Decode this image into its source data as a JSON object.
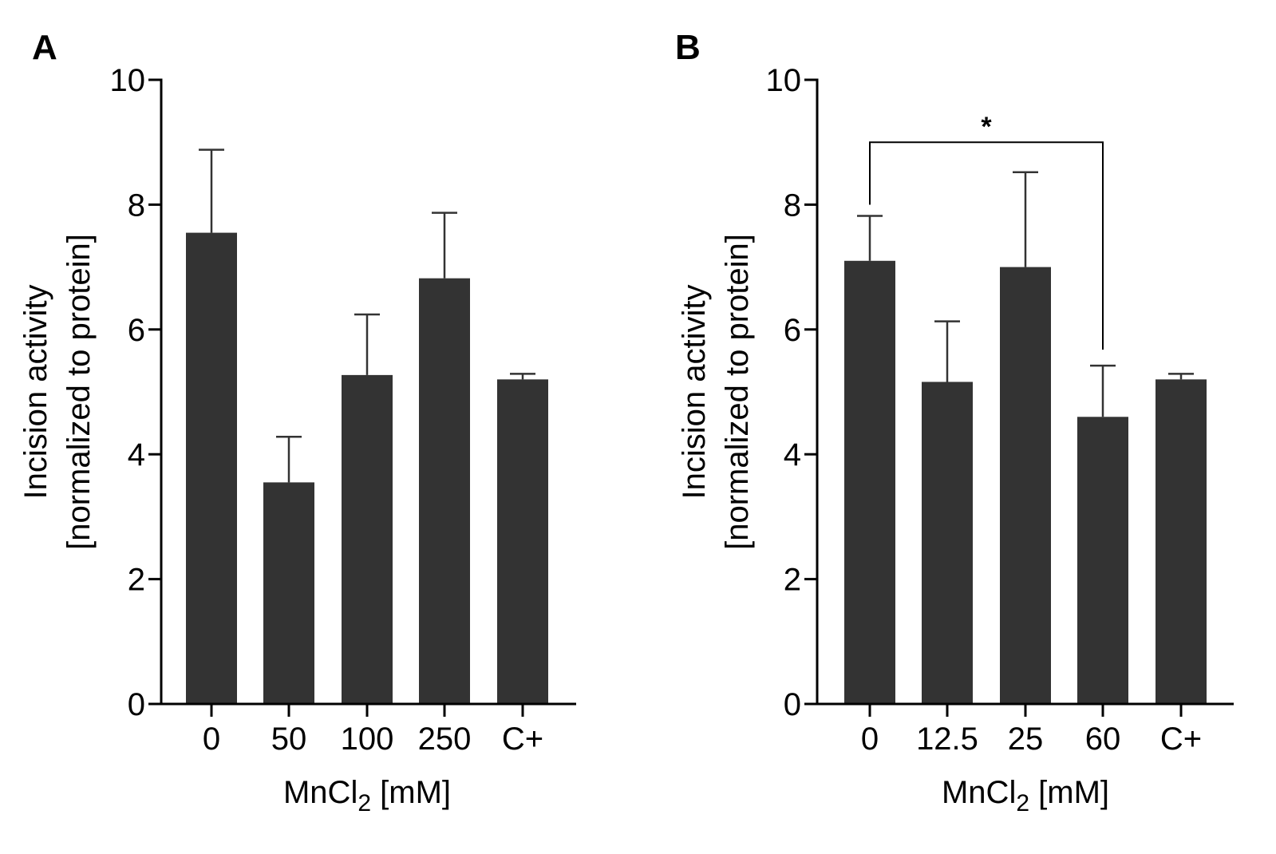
{
  "chart_data": [
    {
      "panel": "A",
      "type": "bar",
      "categories": [
        "0",
        "50",
        "100",
        "250",
        "C+"
      ],
      "values": [
        7.55,
        3.55,
        5.27,
        6.82,
        5.2
      ],
      "errors": [
        1.33,
        0.73,
        0.97,
        1.05,
        0.09
      ],
      "ylabel_lines": [
        "Incision activity",
        "[normalized to protein]"
      ],
      "xlabel": {
        "main": "MnCl",
        "sub": "2",
        "suffix": " [mM]"
      },
      "ylim": [
        0,
        10
      ],
      "yticks": [
        "0",
        "2",
        "4",
        "6",
        "8",
        "10"
      ],
      "color": "#333333"
    },
    {
      "panel": "B",
      "type": "bar",
      "categories": [
        "0",
        "12.5",
        "25",
        "60",
        "C+"
      ],
      "values": [
        7.1,
        5.16,
        7.0,
        4.6,
        5.2
      ],
      "errors": [
        0.72,
        0.97,
        1.52,
        0.82,
        0.09
      ],
      "ylabel_lines": [
        "Incision activity",
        "[normalized to protein]"
      ],
      "xlabel": {
        "main": "MnCl",
        "sub": "2",
        "suffix": " [mM]"
      },
      "ylim": [
        0,
        10
      ],
      "yticks": [
        "0",
        "2",
        "4",
        "6",
        "8",
        "10"
      ],
      "color": "#333333",
      "significance": {
        "from_index": 0,
        "to_index": 3,
        "label": "*",
        "level": 9.0
      }
    }
  ]
}
